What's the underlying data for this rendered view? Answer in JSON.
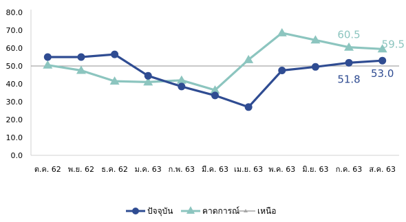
{
  "chart_data": {
    "type": "line",
    "categories": [
      "ต.ค. 62",
      "พ.ย. 62",
      "ธ.ค. 62",
      "ม.ค. 63",
      "ก.พ. 63",
      "มี.ค. 63",
      "เม.ย. 63",
      "พ.ค. 63",
      "มิ.ย. 63",
      "ก.ค. 63",
      "ส.ค. 63"
    ],
    "y_ticks": [
      "0.0",
      "10.0",
      "20.0",
      "30.0",
      "40.0",
      "50.0",
      "60.0",
      "70.0",
      "80.0"
    ],
    "ylim": [
      0,
      80
    ],
    "grid": false,
    "legend_position": "bottom",
    "reference_value": 50,
    "series": [
      {
        "name": "ปัจจุบัน",
        "color": "#2F4C92",
        "marker": "circle",
        "values": [
          55,
          55,
          56.5,
          44.5,
          38.5,
          33.5,
          27,
          47.5,
          49.5,
          51.8,
          53.0
        ]
      },
      {
        "name": "คาดการณ์",
        "color": "#8CC5BF",
        "marker": "triangle",
        "values": [
          50.5,
          47.5,
          41.5,
          41,
          42,
          36.5,
          53.5,
          68.5,
          64.5,
          60.5,
          59.5
        ]
      },
      {
        "name": "เหนือ",
        "color": "#A6A6A6",
        "marker": "line"
      }
    ],
    "data_labels": [
      {
        "series": 1,
        "index": 9,
        "text": "60.5"
      },
      {
        "series": 1,
        "index": 10,
        "text": "59.5"
      },
      {
        "series": 0,
        "index": 9,
        "text": "51.8"
      },
      {
        "series": 0,
        "index": 10,
        "text": "53.0"
      }
    ]
  }
}
